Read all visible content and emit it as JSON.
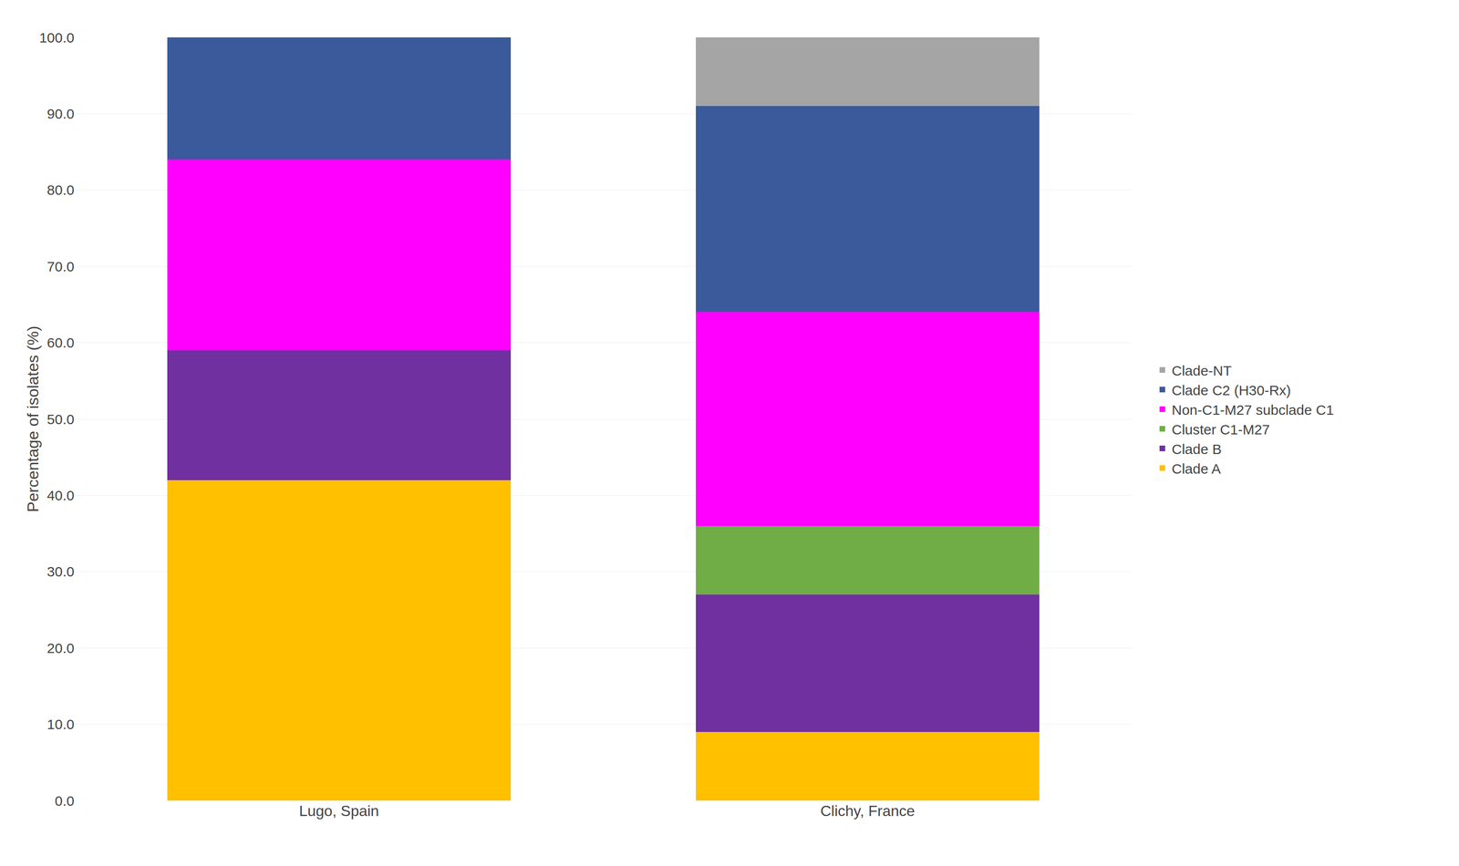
{
  "chart_data": {
    "type": "bar",
    "stacked": true,
    "categories": [
      "Lugo, Spain",
      "Clichy, France"
    ],
    "series": [
      {
        "name": "Clade A",
        "color": "#FFC000",
        "values": [
          42.0,
          9.0
        ]
      },
      {
        "name": "Clade B",
        "color": "#7030A0",
        "values": [
          17.0,
          18.0
        ]
      },
      {
        "name": "Cluster C1-M27",
        "color": "#70AD47",
        "values": [
          0.0,
          9.0
        ]
      },
      {
        "name": "Non-C1-M27 subclade C1",
        "color": "#FF00FF",
        "values": [
          25.0,
          28.0
        ]
      },
      {
        "name": "Clade C2 (H30-Rx)",
        "color": "#3A5A9B",
        "values": [
          16.0,
          27.0
        ]
      },
      {
        "name": "Clade-NT",
        "color": "#A5A5A5",
        "values": [
          0.0,
          9.0
        ]
      }
    ],
    "ylabel": "Percentage of isolates (%)",
    "ylim": [
      0,
      100
    ],
    "yticks": [
      {
        "value": 0,
        "label": "0.0"
      },
      {
        "value": 10,
        "label": "10.0"
      },
      {
        "value": 20,
        "label": "20.0"
      },
      {
        "value": 30,
        "label": "30.0"
      },
      {
        "value": 40,
        "label": "40.0"
      },
      {
        "value": 50,
        "label": "50.0"
      },
      {
        "value": 60,
        "label": "60.0"
      },
      {
        "value": 70,
        "label": "70.0"
      },
      {
        "value": 80,
        "label": "80.0"
      },
      {
        "value": 90,
        "label": "90.0"
      },
      {
        "value": 100,
        "label": "100.0"
      }
    ],
    "grid": true,
    "legend": "right"
  }
}
